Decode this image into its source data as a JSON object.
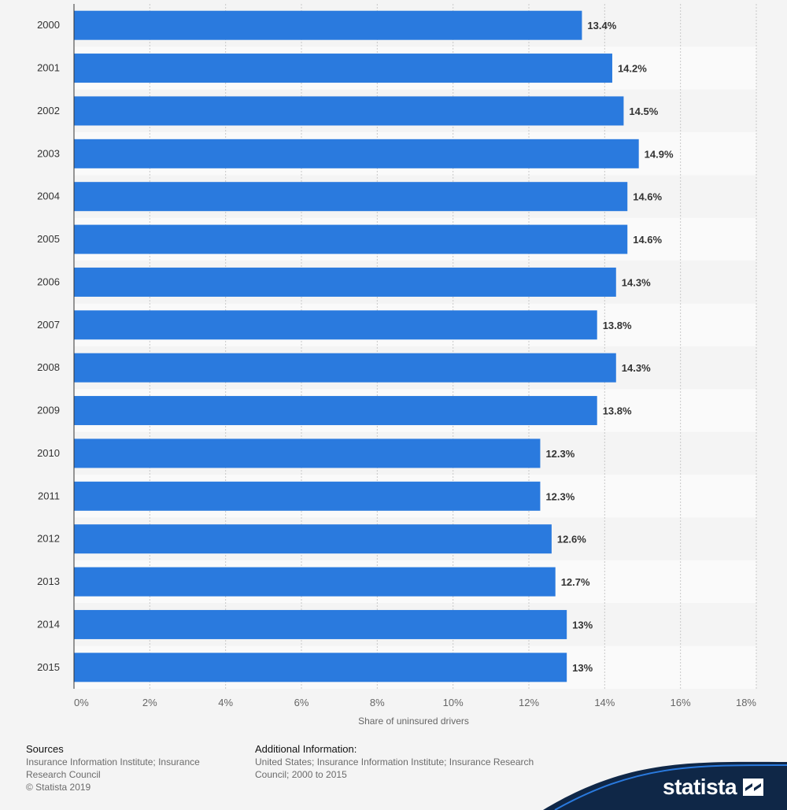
{
  "chart_data": {
    "type": "bar",
    "orientation": "horizontal",
    "categories": [
      "2000",
      "2001",
      "2002",
      "2003",
      "2004",
      "2005",
      "2006",
      "2007",
      "2008",
      "2009",
      "2010",
      "2011",
      "2012",
      "2013",
      "2014",
      "2015"
    ],
    "values": [
      13.4,
      14.2,
      14.5,
      14.9,
      14.6,
      14.6,
      14.3,
      13.8,
      14.3,
      13.8,
      12.3,
      12.3,
      12.6,
      12.7,
      13,
      13
    ],
    "value_labels": [
      "13.4%",
      "14.2%",
      "14.5%",
      "14.9%",
      "14.6%",
      "14.6%",
      "14.3%",
      "13.8%",
      "14.3%",
      "13.8%",
      "12.3%",
      "12.3%",
      "12.6%",
      "12.7%",
      "13%",
      "13%"
    ],
    "xlabel": "Share of uninsured drivers",
    "ylabel": "",
    "xlim": [
      0,
      18
    ],
    "x_ticks": [
      "0%",
      "2%",
      "4%",
      "6%",
      "8%",
      "10%",
      "12%",
      "14%",
      "16%",
      "18%"
    ],
    "grid": true,
    "bar_color": "#2a7ade"
  },
  "footer": {
    "sources_title": "Sources",
    "sources_line1": "Insurance Information Institute; Insurance",
    "sources_line2": "Research Council",
    "copyright": "© Statista 2019",
    "additional_title": "Additional Information:",
    "additional_line1": "United States; Insurance Information Institute; Insurance Research",
    "additional_line2": "Council; 2000 to 2015"
  },
  "brand": {
    "logo_text": "statista",
    "logo_icon": "statista-logo-icon",
    "color": "#0f2747"
  }
}
